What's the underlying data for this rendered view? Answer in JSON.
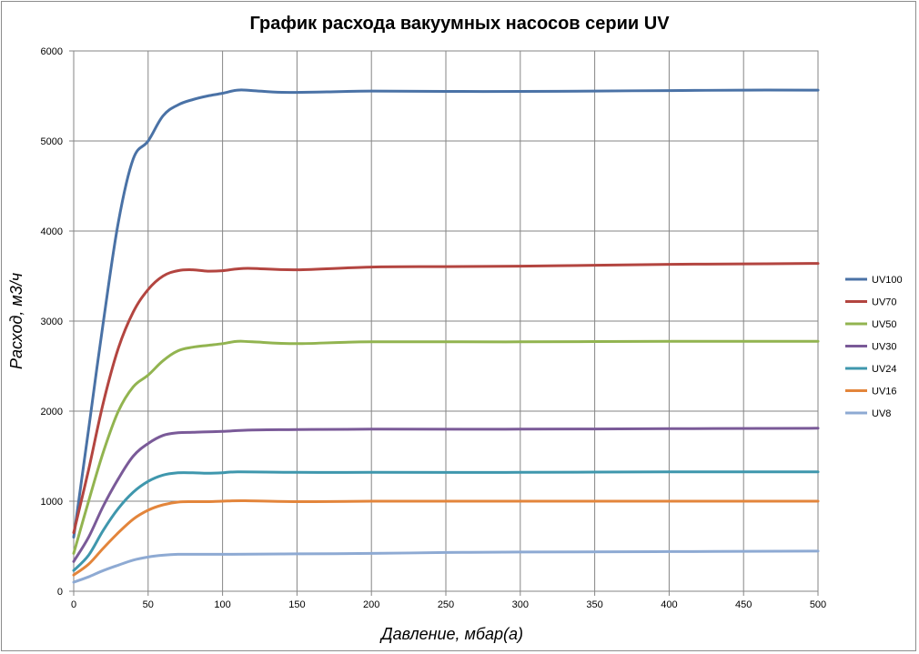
{
  "chart_data": {
    "type": "line",
    "title": "График расхода вакуумных насосов серии UV",
    "xlabel": "Давление, мбар(а)",
    "ylabel": "Расход, м3/ч",
    "xlim": [
      0,
      500
    ],
    "ylim": [
      0,
      6000
    ],
    "xticks": [
      0,
      50,
      100,
      150,
      200,
      250,
      300,
      350,
      400,
      450,
      500
    ],
    "yticks": [
      0,
      1000,
      2000,
      3000,
      4000,
      5000,
      6000
    ],
    "grid": true,
    "legend_position": "right",
    "series": [
      {
        "name": "UV100",
        "color": "#4a72a6",
        "points": [
          [
            0,
            600
          ],
          [
            10,
            1800
          ],
          [
            20,
            3000
          ],
          [
            30,
            4100
          ],
          [
            40,
            4800
          ],
          [
            50,
            5000
          ],
          [
            60,
            5280
          ],
          [
            70,
            5400
          ],
          [
            80,
            5460
          ],
          [
            90,
            5500
          ],
          [
            100,
            5530
          ],
          [
            110,
            5565
          ],
          [
            120,
            5560
          ],
          [
            140,
            5540
          ],
          [
            170,
            5545
          ],
          [
            200,
            5555
          ],
          [
            250,
            5550
          ],
          [
            300,
            5550
          ],
          [
            350,
            5555
          ],
          [
            400,
            5560
          ],
          [
            450,
            5565
          ],
          [
            500,
            5565
          ]
        ]
      },
      {
        "name": "UV70",
        "color": "#b34540",
        "points": [
          [
            0,
            650
          ],
          [
            10,
            1350
          ],
          [
            20,
            2100
          ],
          [
            30,
            2700
          ],
          [
            40,
            3100
          ],
          [
            50,
            3350
          ],
          [
            60,
            3500
          ],
          [
            70,
            3560
          ],
          [
            80,
            3570
          ],
          [
            90,
            3555
          ],
          [
            100,
            3560
          ],
          [
            110,
            3580
          ],
          [
            120,
            3585
          ],
          [
            150,
            3570
          ],
          [
            200,
            3600
          ],
          [
            250,
            3605
          ],
          [
            300,
            3610
          ],
          [
            350,
            3620
          ],
          [
            400,
            3630
          ],
          [
            450,
            3635
          ],
          [
            500,
            3640
          ]
        ]
      },
      {
        "name": "UV50",
        "color": "#92b450",
        "points": [
          [
            0,
            420
          ],
          [
            10,
            1000
          ],
          [
            20,
            1550
          ],
          [
            30,
            2000
          ],
          [
            40,
            2270
          ],
          [
            50,
            2400
          ],
          [
            60,
            2560
          ],
          [
            70,
            2670
          ],
          [
            80,
            2710
          ],
          [
            90,
            2730
          ],
          [
            100,
            2750
          ],
          [
            110,
            2775
          ],
          [
            120,
            2770
          ],
          [
            150,
            2750
          ],
          [
            200,
            2770
          ],
          [
            300,
            2770
          ],
          [
            400,
            2775
          ],
          [
            500,
            2775
          ]
        ]
      },
      {
        "name": "UV30",
        "color": "#7a5a98",
        "points": [
          [
            0,
            330
          ],
          [
            10,
            600
          ],
          [
            20,
            950
          ],
          [
            30,
            1250
          ],
          [
            40,
            1500
          ],
          [
            50,
            1640
          ],
          [
            60,
            1730
          ],
          [
            70,
            1760
          ],
          [
            80,
            1765
          ],
          [
            90,
            1770
          ],
          [
            100,
            1775
          ],
          [
            120,
            1790
          ],
          [
            150,
            1795
          ],
          [
            200,
            1800
          ],
          [
            300,
            1800
          ],
          [
            400,
            1805
          ],
          [
            500,
            1810
          ]
        ]
      },
      {
        "name": "UV24",
        "color": "#3f97ad",
        "points": [
          [
            0,
            230
          ],
          [
            10,
            400
          ],
          [
            20,
            680
          ],
          [
            30,
            920
          ],
          [
            40,
            1100
          ],
          [
            50,
            1220
          ],
          [
            60,
            1290
          ],
          [
            70,
            1315
          ],
          [
            80,
            1315
          ],
          [
            90,
            1310
          ],
          [
            100,
            1315
          ],
          [
            110,
            1325
          ],
          [
            150,
            1320
          ],
          [
            200,
            1320
          ],
          [
            300,
            1320
          ],
          [
            400,
            1325
          ],
          [
            500,
            1325
          ]
        ]
      },
      {
        "name": "UV16",
        "color": "#e3853b",
        "points": [
          [
            0,
            180
          ],
          [
            10,
            300
          ],
          [
            20,
            480
          ],
          [
            30,
            650
          ],
          [
            40,
            800
          ],
          [
            50,
            900
          ],
          [
            60,
            960
          ],
          [
            70,
            990
          ],
          [
            80,
            995
          ],
          [
            90,
            995
          ],
          [
            100,
            1000
          ],
          [
            115,
            1005
          ],
          [
            150,
            995
          ],
          [
            200,
            1000
          ],
          [
            300,
            1000
          ],
          [
            400,
            1000
          ],
          [
            500,
            1000
          ]
        ]
      },
      {
        "name": "UV8",
        "color": "#8eaad3",
        "points": [
          [
            0,
            100
          ],
          [
            10,
            160
          ],
          [
            20,
            230
          ],
          [
            30,
            290
          ],
          [
            40,
            345
          ],
          [
            50,
            380
          ],
          [
            60,
            400
          ],
          [
            70,
            410
          ],
          [
            80,
            410
          ],
          [
            100,
            410
          ],
          [
            150,
            415
          ],
          [
            200,
            420
          ],
          [
            250,
            430
          ],
          [
            300,
            435
          ],
          [
            400,
            440
          ],
          [
            500,
            445
          ]
        ]
      }
    ]
  }
}
